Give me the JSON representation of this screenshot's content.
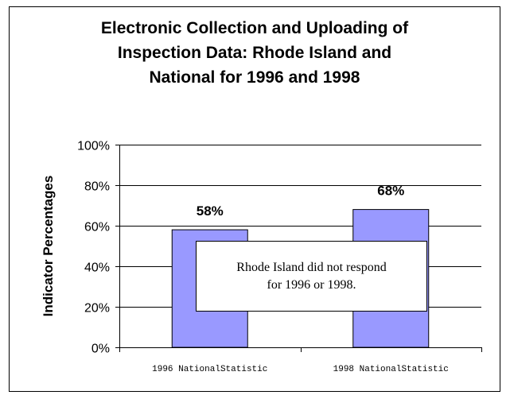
{
  "chart_data": {
    "type": "bar",
    "title_lines": [
      "Electronic Collection and Uploading of",
      "Inspection Data: Rhode Island and",
      "National for 1996 and 1998"
    ],
    "ylabel": "Indicator Percentages",
    "xlabel": "",
    "categories": [
      "1996 NationalStatistic",
      "1998 NationalStatistic"
    ],
    "values": [
      58,
      68
    ],
    "data_labels": [
      "58%",
      "68%"
    ],
    "ylim": [
      0,
      100
    ],
    "yticks": [
      0,
      20,
      40,
      60,
      80,
      100
    ],
    "ytick_labels": [
      "0%",
      "20%",
      "40%",
      "60%",
      "80%",
      "100%"
    ],
    "grid": true,
    "bar_color": "#9999ff",
    "annotation_lines": [
      "Rhode Island did not respond",
      "for 1996 or 1998."
    ]
  }
}
